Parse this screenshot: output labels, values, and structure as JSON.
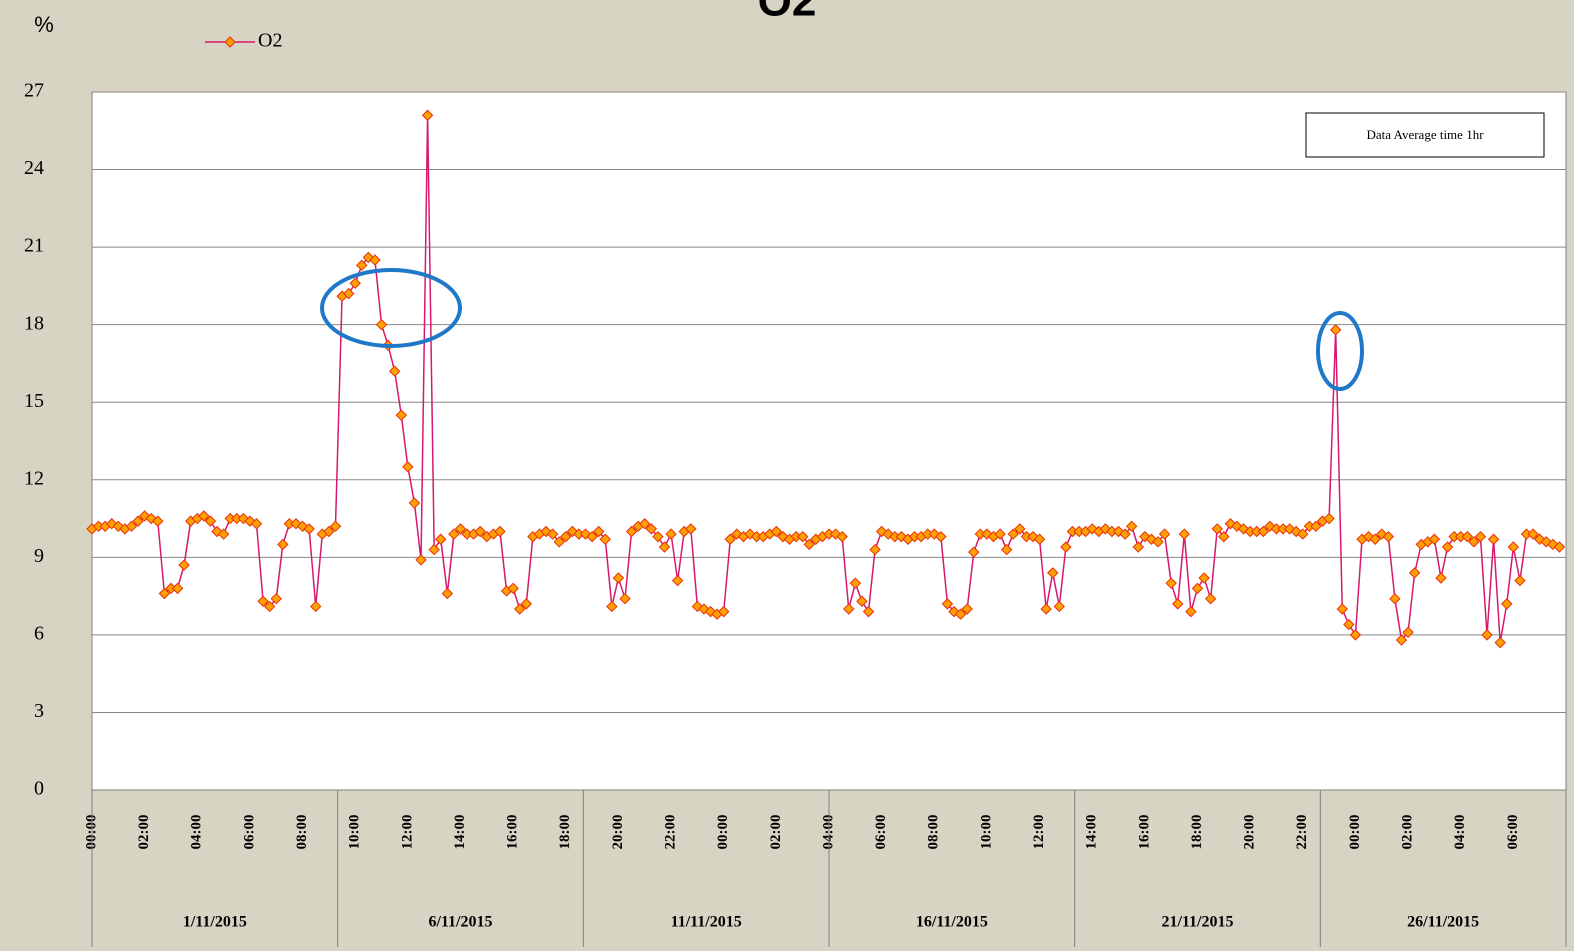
{
  "chart_data": {
    "type": "line",
    "title": "O2",
    "y_label": "%",
    "annotation": "Data Average time 1hr",
    "categories": [
      "00:00",
      null,
      null,
      null,
      null,
      null,
      null,
      null,
      "02:00",
      null,
      null,
      null,
      null,
      null,
      null,
      null,
      "04:00",
      null,
      null,
      null,
      null,
      null,
      null,
      null,
      "06:00",
      null,
      null,
      null,
      null,
      null,
      null,
      null,
      "08:00",
      null,
      null,
      null,
      null,
      null,
      null,
      null,
      "10:00",
      null,
      null,
      null,
      null,
      null,
      null,
      null,
      "12:00",
      null,
      null,
      null,
      null,
      null,
      null,
      null,
      "14:00",
      null,
      null,
      null,
      null,
      null,
      null,
      null,
      "16:00",
      null,
      null,
      null,
      null,
      null,
      null,
      null,
      "18:00",
      null,
      null,
      null,
      null,
      null,
      null,
      null,
      "20:00",
      null,
      null,
      null,
      null,
      null,
      null,
      null,
      "22:00",
      null,
      null,
      null,
      null,
      null,
      null,
      null,
      "00:00",
      null,
      null,
      null,
      null,
      null,
      null,
      null,
      "02:00",
      null,
      null,
      null,
      null,
      null,
      null,
      null,
      "04:00",
      null,
      null,
      null,
      null,
      null,
      null,
      null,
      "06:00",
      null,
      null,
      null,
      null,
      null,
      null,
      null,
      "08:00",
      null,
      null,
      null,
      null,
      null,
      null,
      null,
      "10:00",
      null,
      null,
      null,
      null,
      null,
      null,
      null,
      "12:00",
      null,
      null,
      null,
      null,
      null,
      null,
      null,
      "14:00",
      null,
      null,
      null,
      null,
      null,
      null,
      null,
      "16:00",
      null,
      null,
      null,
      null,
      null,
      null,
      null,
      "18:00",
      null,
      null,
      null,
      null,
      null,
      null,
      null,
      "20:00",
      null,
      null,
      null,
      null,
      null,
      null,
      null,
      "22:00",
      null,
      null,
      null,
      null,
      null,
      null,
      null,
      "00:00",
      null,
      null,
      null,
      null,
      null,
      null,
      null,
      "02:00",
      null,
      null,
      null,
      null,
      null,
      null,
      null,
      "04:00",
      null,
      null,
      null,
      null,
      null,
      null,
      null,
      "06:00",
      null,
      null,
      null,
      null,
      null,
      null,
      null
    ],
    "groups": [
      "1/11/2015",
      "6/11/2015",
      "11/11/2015",
      "16/11/2015",
      "21/11/2015",
      "26/11/2015"
    ],
    "series": [
      {
        "name": "O2",
        "color": "#d6186e",
        "marker_color": "#ffa000",
        "marker_edge": "#e8300c",
        "values": [
          10.1,
          10.2,
          10.2,
          10.3,
          10.2,
          10.1,
          10.2,
          10.4,
          10.6,
          10.5,
          10.4,
          7.6,
          7.8,
          7.8,
          8.7,
          10.4,
          10.5,
          10.6,
          10.4,
          10.0,
          9.9,
          10.5,
          10.5,
          10.5,
          10.4,
          10.3,
          7.3,
          7.1,
          7.4,
          9.5,
          10.3,
          10.3,
          10.2,
          10.1,
          7.1,
          9.9,
          10.0,
          10.2,
          19.1,
          19.2,
          19.6,
          20.3,
          20.6,
          20.5,
          18.0,
          17.2,
          16.2,
          14.5,
          12.5,
          11.1,
          8.9,
          26.1,
          9.3,
          9.7,
          7.6,
          9.9,
          10.1,
          9.9,
          9.9,
          10.0,
          9.8,
          9.9,
          10.0,
          7.7,
          7.8,
          7.0,
          7.2,
          9.8,
          9.9,
          10.0,
          9.9,
          9.6,
          9.8,
          10.0,
          9.9,
          9.9,
          9.8,
          10.0,
          9.7,
          7.1,
          8.2,
          7.4,
          10.0,
          10.2,
          10.3,
          10.1,
          9.8,
          9.4,
          9.9,
          8.1,
          10.0,
          10.1,
          7.1,
          7.0,
          6.9,
          6.8,
          6.9,
          9.7,
          9.9,
          9.8,
          9.9,
          9.8,
          9.8,
          9.9,
          10.0,
          9.8,
          9.7,
          9.8,
          9.8,
          9.5,
          9.7,
          9.8,
          9.9,
          9.9,
          9.8,
          7.0,
          8.0,
          7.3,
          6.9,
          9.3,
          10.0,
          9.9,
          9.8,
          9.8,
          9.7,
          9.8,
          9.8,
          9.9,
          9.9,
          9.8,
          7.2,
          6.9,
          6.8,
          7.0,
          9.2,
          9.9,
          9.9,
          9.8,
          9.9,
          9.3,
          9.9,
          10.1,
          9.8,
          9.8,
          9.7,
          7.0,
          8.4,
          7.1,
          9.4,
          10.0,
          10.0,
          10.0,
          10.1,
          10.0,
          10.1,
          10.0,
          10.0,
          9.9,
          10.2,
          9.4,
          9.8,
          9.7,
          9.6,
          9.9,
          8.0,
          7.2,
          9.9,
          6.9,
          7.8,
          8.2,
          7.4,
          10.1,
          9.8,
          10.3,
          10.2,
          10.1,
          10.0,
          10.0,
          10.0,
          10.2,
          10.1,
          10.1,
          10.1,
          10.0,
          9.9,
          10.2,
          10.2,
          10.4,
          10.5,
          17.8,
          7.0,
          6.4,
          6.0,
          9.7,
          9.8,
          9.7,
          9.9,
          9.8,
          7.4,
          5.8,
          6.1,
          8.4,
          9.5,
          9.6,
          9.7,
          8.2,
          9.4,
          9.8,
          9.8,
          9.8,
          9.6,
          9.8,
          6.0,
          9.7,
          5.7,
          7.2,
          9.4,
          8.1,
          9.9,
          9.9,
          9.7,
          9.6,
          9.5,
          9.4
        ]
      }
    ],
    "ylim": [
      0,
      27
    ],
    "yticks": [
      0,
      3,
      6,
      9,
      12,
      15,
      18,
      21,
      24,
      27
    ],
    "grid": true,
    "legend": "top-left"
  }
}
